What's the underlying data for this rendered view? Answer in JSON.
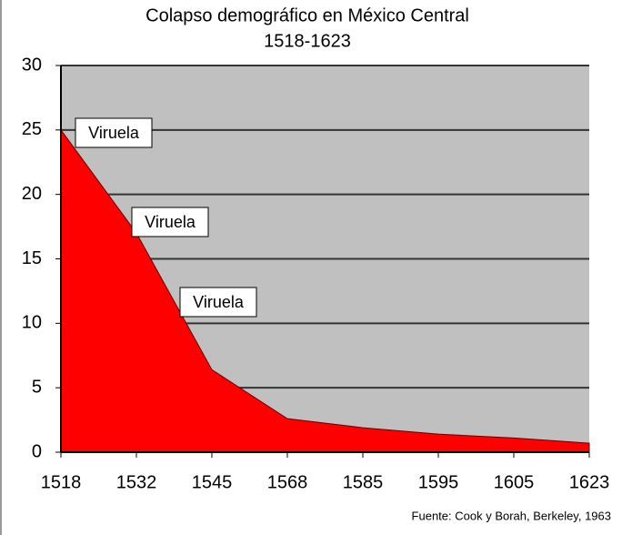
{
  "chart_data": {
    "type": "area",
    "title": "Colapso demográfico en México Central",
    "subtitle": "1518-1623",
    "categories": [
      "1518",
      "1532",
      "1545",
      "1568",
      "1585",
      "1595",
      "1605",
      "1623"
    ],
    "values": [
      25,
      17,
      6.4,
      2.6,
      1.9,
      1.4,
      1.1,
      0.7
    ],
    "color": "#ff0000",
    "background": "#c0c0c0",
    "ylim": [
      0,
      30
    ],
    "yticks": [
      0,
      5,
      10,
      15,
      20,
      25,
      30
    ],
    "grid": true,
    "annotations": [
      "Viruela",
      "Viruela",
      "Viruela"
    ],
    "source": "Fuente: Cook y Borah, Berkeley, 1963"
  }
}
